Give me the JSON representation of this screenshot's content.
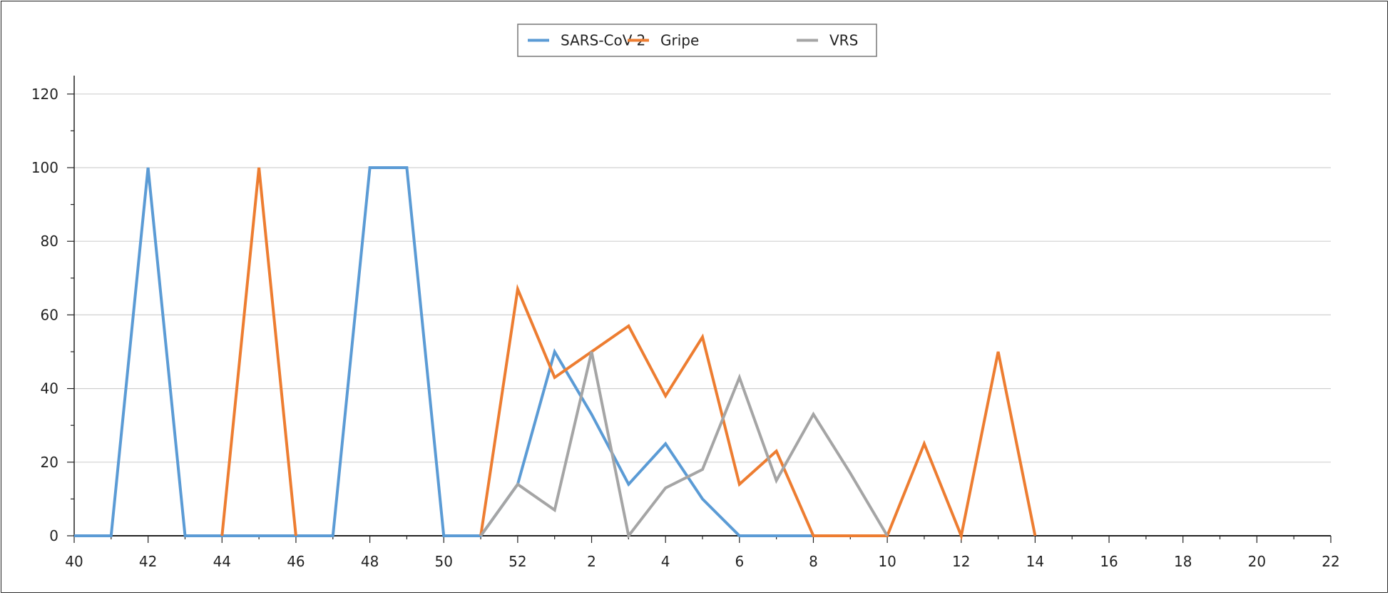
{
  "chart_data": {
    "type": "line",
    "title": "",
    "xlabel": "",
    "ylabel": "",
    "ylim": [
      0,
      120
    ],
    "y_ticks": [
      0,
      20,
      40,
      60,
      80,
      100,
      120
    ],
    "x_tick_labels": [
      "40",
      "42",
      "44",
      "46",
      "48",
      "50",
      "52",
      "2",
      "4",
      "6",
      "8",
      "10",
      "12",
      "14",
      "16",
      "18",
      "20",
      "22"
    ],
    "x": [
      "40",
      "41",
      "42",
      "43",
      "44",
      "45",
      "46",
      "47",
      "48",
      "49",
      "50",
      "51",
      "52",
      "1",
      "2",
      "3",
      "4",
      "5",
      "6",
      "7",
      "8",
      "9",
      "10",
      "11",
      "12",
      "13",
      "14",
      "15",
      "16",
      "17",
      "18",
      "19",
      "20",
      "21",
      "22"
    ],
    "grid": true,
    "legend_position": "top-center",
    "series": [
      {
        "name": "SARS-CoV-2",
        "color": "#5b9bd5",
        "values": [
          0,
          0,
          100,
          0,
          0,
          0,
          0,
          0,
          100,
          100,
          0,
          0,
          14,
          50,
          33,
          14,
          25,
          10,
          0,
          0,
          0,
          null,
          null,
          null,
          null,
          null,
          null,
          null,
          null,
          null,
          null,
          null,
          null,
          null,
          null
        ]
      },
      {
        "name": "Gripe",
        "color": "#ed7d31",
        "values": [
          null,
          null,
          null,
          null,
          0,
          100,
          0,
          null,
          null,
          null,
          null,
          0,
          67,
          43,
          50,
          57,
          38,
          54,
          14,
          23,
          0,
          0,
          0,
          25,
          0,
          50,
          0,
          null,
          null,
          null,
          null,
          null,
          null,
          null,
          null
        ]
      },
      {
        "name": "VRS",
        "color": "#a5a5a5",
        "values": [
          null,
          null,
          null,
          null,
          null,
          null,
          null,
          null,
          null,
          null,
          null,
          0,
          14,
          7,
          50,
          0,
          13,
          18,
          43,
          15,
          33,
          17,
          0,
          null,
          null,
          null,
          null,
          null,
          null,
          null,
          null,
          null,
          null,
          null,
          null
        ]
      }
    ]
  }
}
